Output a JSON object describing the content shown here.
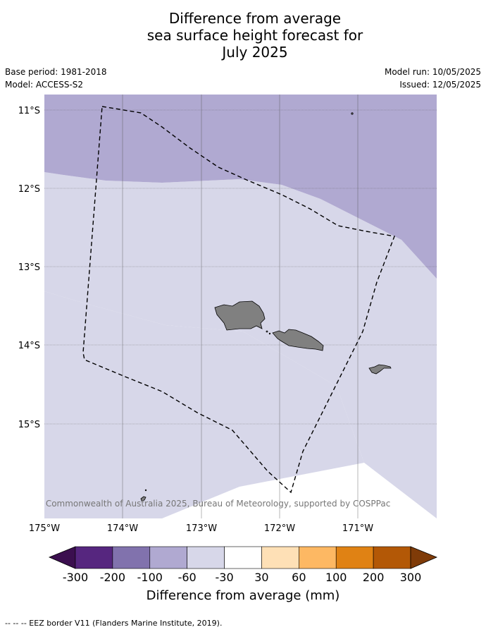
{
  "title": {
    "line1": "Difference from average",
    "line2": "sea surface height forecast for",
    "line3": "July 2025"
  },
  "meta": {
    "base_period": "Base period: 1981-2018",
    "model": "Model: ACCESS-S2",
    "model_run": "Model run: 10/05/2025",
    "issued": "Issued: 12/05/2025"
  },
  "map": {
    "lon_ticks": [
      "175°W",
      "174°W",
      "173°W",
      "172°W",
      "171°W"
    ],
    "lat_ticks": [
      "11°S",
      "12°S",
      "13°S",
      "14°S",
      "15°S"
    ],
    "copyright": "© Commonwealth of Australia 2025, Bureau of Meteorology, supported by COSPPac",
    "colors": {
      "band_neg100_neg60": "#b0a9d1",
      "band_neg60_neg30": "#d7d7e9",
      "band_neg30_30": "#ffffff",
      "land": "#808080",
      "eez": "#000000"
    }
  },
  "colorbar": {
    "title": "Difference from average (mm)",
    "labels": [
      "-300",
      "-200",
      "-100",
      "-60",
      "-30",
      "30",
      "60",
      "100",
      "200",
      "300"
    ],
    "colors": [
      "#3b0f4f",
      "#56267f",
      "#8172ad",
      "#b0a9d1",
      "#d7d7e9",
      "#ffffff",
      "#fee0b6",
      "#fdb863",
      "#e08214",
      "#b35806",
      "#7f3b08"
    ]
  },
  "footnote": "--  --  -- EEZ border V11 (Flanders Marine Institute, 2019)."
}
